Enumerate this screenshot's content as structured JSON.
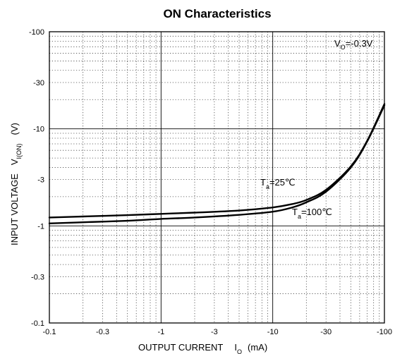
{
  "chart_data": {
    "type": "line",
    "title": "ON Characteristics",
    "xlabel": {
      "main": "OUTPUT CURRENT",
      "symbol": "I",
      "subscript": "O",
      "unit": "(mA)"
    },
    "ylabel": {
      "main": "INPUT VOLTAGE",
      "symbol": "V",
      "subscript": "I(ON)",
      "unit": "(V)"
    },
    "x_scale": "log",
    "y_scale": "log",
    "x_range": [
      -0.1,
      -100
    ],
    "y_range": [
      -0.1,
      -100
    ],
    "x_ticks": [
      "-0.1",
      "-0.3",
      "-1",
      "-3",
      "-10",
      "-30",
      "-100"
    ],
    "y_ticks": [
      "-100",
      "-30",
      "-10",
      "-3",
      "-1",
      "-0.3",
      "-0.1"
    ],
    "grid": true,
    "condition": {
      "symbol": "V",
      "subscript": "O",
      "value": "=-0.3V"
    },
    "series": [
      {
        "name": {
          "symbol": "T",
          "subscript": "a",
          "value": "=25℃"
        },
        "x": [
          -0.1,
          -0.2,
          -0.5,
          -1,
          -2,
          -5,
          -10,
          -15,
          -20,
          -30,
          -50,
          -70,
          -100
        ],
        "y": [
          -1.22,
          -1.25,
          -1.29,
          -1.33,
          -1.37,
          -1.44,
          -1.55,
          -1.68,
          -1.85,
          -2.35,
          -4.1,
          -7.5,
          -18
        ]
      },
      {
        "name": {
          "symbol": "T",
          "subscript": "a",
          "value": "=100℃"
        },
        "x": [
          -0.1,
          -0.2,
          -0.5,
          -1,
          -2,
          -5,
          -10,
          -15,
          -20,
          -30,
          -50,
          -70,
          -100
        ],
        "y": [
          -1.06,
          -1.09,
          -1.13,
          -1.18,
          -1.22,
          -1.3,
          -1.4,
          -1.55,
          -1.75,
          -2.25,
          -4.0,
          -7.4,
          -17.5
        ]
      }
    ]
  }
}
